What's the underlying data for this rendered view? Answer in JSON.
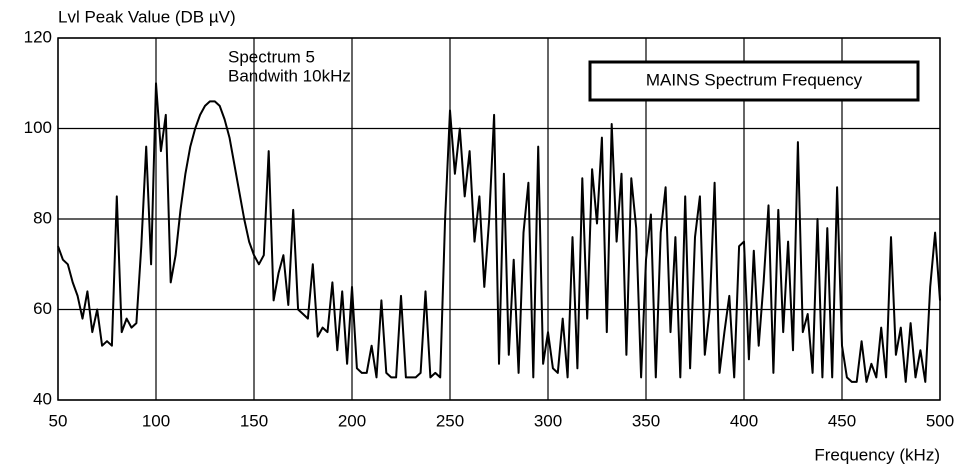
{
  "chart_data": {
    "type": "line",
    "y_label": "Lvl Peak Value (DB µV)",
    "x_label": "Frequency (kHz)",
    "annotation": [
      "Spectrum 5",
      "Bandwith 10kHz"
    ],
    "box_label": "MAINS Spectrum Frequency",
    "color": "#000000",
    "grid": true,
    "xlim": [
      50,
      500
    ],
    "xticks": [
      50,
      100,
      150,
      200,
      250,
      300,
      350,
      400,
      450,
      500
    ],
    "ylim": [
      40,
      120
    ],
    "yticks": [
      40,
      60,
      80,
      100,
      120
    ],
    "x": [
      50,
      52.5,
      55,
      57.5,
      60,
      62.5,
      65,
      67.5,
      70,
      72.5,
      75,
      77.5,
      80,
      82.5,
      85,
      87.5,
      90,
      92.5,
      95,
      97.5,
      100,
      102.5,
      105,
      107.5,
      110,
      112.5,
      115,
      117.5,
      120,
      122.5,
      125,
      127.5,
      130,
      132.5,
      135,
      137.5,
      140,
      142.5,
      145,
      147.5,
      150,
      152.5,
      155,
      157.5,
      160,
      162.5,
      165,
      167.5,
      170,
      172.5,
      175,
      177.5,
      180,
      182.5,
      185,
      187.5,
      190,
      192.5,
      195,
      197.5,
      200,
      202.5,
      205,
      207.5,
      210,
      212.5,
      215,
      217.5,
      220,
      222.5,
      225,
      227.5,
      230,
      232.5,
      235,
      237.5,
      240,
      242.5,
      245,
      247.5,
      250,
      252.5,
      255,
      257.5,
      260,
      262.5,
      265,
      267.5,
      270,
      272.5,
      275,
      277.5,
      280,
      282.5,
      285,
      287.5,
      290,
      292.5,
      295,
      297.5,
      300,
      302.5,
      305,
      307.5,
      310,
      312.5,
      315,
      317.5,
      320,
      322.5,
      325,
      327.5,
      330,
      332.5,
      335,
      337.5,
      340,
      342.5,
      345,
      347.5,
      350,
      352.5,
      355,
      357.5,
      360,
      362.5,
      365,
      367.5,
      370,
      372.5,
      375,
      377.5,
      380,
      382.5,
      385,
      387.5,
      390,
      392.5,
      395,
      397.5,
      400,
      402.5,
      405,
      407.5,
      410,
      412.5,
      415,
      417.5,
      420,
      422.5,
      425,
      427.5,
      430,
      432.5,
      435,
      437.5,
      440,
      442.5,
      445,
      447.5,
      450,
      452.5,
      455,
      457.5,
      460,
      462.5,
      465,
      467.5,
      470,
      472.5,
      475,
      477.5,
      480,
      482.5,
      485,
      487.5,
      490,
      492.5,
      495,
      497.5,
      500
    ],
    "values": [
      74,
      71,
      70,
      66,
      63,
      58,
      64,
      55,
      60,
      52,
      53,
      52,
      85,
      55,
      58,
      56,
      57,
      74,
      96,
      70,
      110,
      95,
      103,
      66,
      72,
      82,
      90,
      96,
      100,
      103,
      105,
      106,
      106,
      105,
      102,
      98,
      92,
      86,
      80,
      75,
      72,
      70,
      72,
      95,
      62,
      68,
      72,
      61,
      82,
      60,
      59,
      58,
      70,
      54,
      56,
      55,
      66,
      51,
      64,
      48,
      65,
      47,
      46,
      46,
      52,
      45,
      62,
      46,
      45,
      45,
      63,
      45,
      45,
      45,
      46,
      64,
      45,
      46,
      45,
      80,
      104,
      90,
      100,
      85,
      95,
      75,
      85,
      65,
      80,
      103,
      48,
      90,
      50,
      71,
      46,
      77,
      88,
      45,
      96,
      48,
      55,
      47,
      46,
      58,
      45,
      76,
      47,
      89,
      58,
      91,
      79,
      98,
      55,
      101,
      75,
      90,
      50,
      89,
      78,
      45,
      71,
      81,
      45,
      77,
      87,
      55,
      76,
      45,
      85,
      47,
      76,
      85,
      50,
      60,
      88,
      46,
      55,
      63,
      45,
      74,
      75,
      49,
      73,
      52,
      66,
      83,
      46,
      82,
      55,
      75,
      51,
      97,
      55,
      59,
      46,
      80,
      45,
      78,
      45,
      87,
      52,
      45,
      44,
      44,
      53,
      44,
      48,
      45,
      56,
      45,
      76,
      50,
      56,
      44,
      57,
      45,
      51,
      44,
      65,
      77,
      62
    ]
  }
}
